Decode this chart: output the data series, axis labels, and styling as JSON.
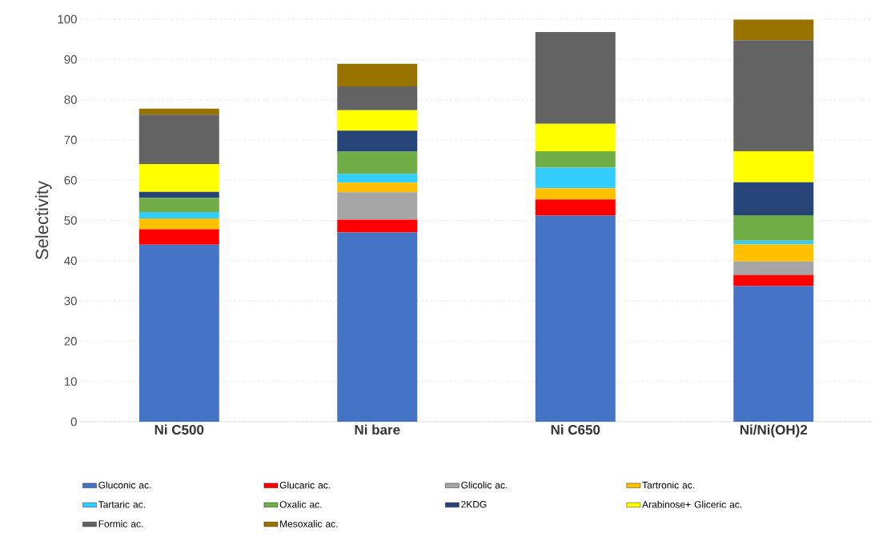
{
  "chart_data": {
    "type": "bar",
    "stacked": true,
    "ylabel": "Selectivity",
    "categories": [
      "Ni C500",
      "Ni bare",
      "Ni C650",
      "Ni/Ni(OH)2"
    ],
    "series": [
      {
        "name": "Gluconic ac.",
        "color": "#4472c4",
        "values": [
          44,
          47,
          51.2,
          33.7
        ]
      },
      {
        "name": "Glucaric ac.",
        "color": "#ff0000",
        "values": [
          3.8,
          3.2,
          4.0,
          2.8
        ]
      },
      {
        "name": "Glicolic ac.",
        "color": "#a5a5a5",
        "values": [
          0,
          6.8,
          0,
          3.3
        ]
      },
      {
        "name": "Tartronic ac.",
        "color": "#ffc000",
        "values": [
          2.7,
          2.4,
          2.8,
          4.3
        ]
      },
      {
        "name": "Tartaric ac.",
        "color": "#33ccff",
        "values": [
          1.6,
          2.2,
          5.1,
          0.9
        ]
      },
      {
        "name": "Oxalic ac.",
        "color": "#70ad47",
        "values": [
          3.5,
          5.5,
          4.1,
          6.3
        ]
      },
      {
        "name": "2KDG",
        "color": "#264478",
        "values": [
          1.5,
          5.2,
          0,
          8.2
        ]
      },
      {
        "name": "Arabinose+ Gliceric ac.",
        "color": "#ffff00",
        "values": [
          6.9,
          5.1,
          6.8,
          7.7
        ]
      },
      {
        "name": "Formic ac.",
        "color": "#636363",
        "values": [
          12.3,
          5.9,
          22.8,
          27.6
        ]
      },
      {
        "name": "Mesoxalic ac.",
        "color": "#997300",
        "values": [
          1.5,
          5.6,
          0,
          5.1
        ]
      }
    ],
    "ylim": [
      0,
      100
    ],
    "yticks": [
      0,
      10,
      20,
      30,
      40,
      50,
      60,
      70,
      80,
      90,
      100
    ],
    "grid": "y",
    "legend": "bottom"
  }
}
